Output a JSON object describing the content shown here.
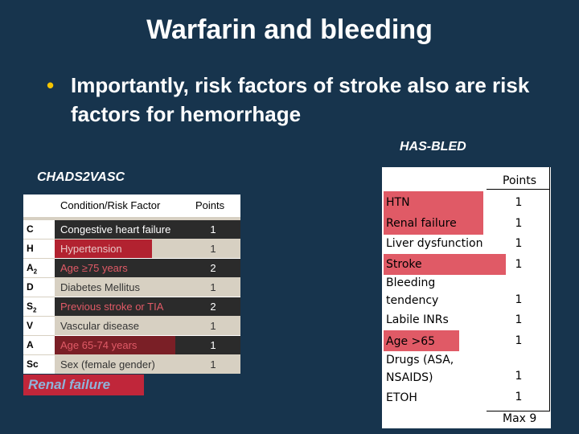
{
  "slide": {
    "title": "Warfarin and bleeding",
    "bullet_marker": "•",
    "bullet_text": "Importantly, risk factors of stroke also are risk factors for hemorrhage"
  },
  "has_bled_label": "HAS-BLED",
  "chads_label": "CHADS2VASC",
  "chads_table": {
    "header_condition": "Condition/Risk Factor",
    "header_points": "Points",
    "rows": [
      {
        "abbr": "C",
        "condition": "Congestive heart failure",
        "points": "1"
      },
      {
        "abbr": "H",
        "condition": "Hypertension",
        "points": "1"
      },
      {
        "abbr": "A2",
        "condition": "Age ≥75 years",
        "points": "2"
      },
      {
        "abbr": "D",
        "condition": "Diabetes Mellitus",
        "points": "1"
      },
      {
        "abbr": "S2",
        "condition": "Previous stroke or TIA",
        "points": "2"
      },
      {
        "abbr": "V",
        "condition": "Vascular disease",
        "points": "1"
      },
      {
        "abbr": "A",
        "condition": "Age 65-74 years",
        "points": "1"
      },
      {
        "abbr": "Sc",
        "condition": "Sex (female gender)",
        "points": "1"
      }
    ]
  },
  "renal_failure_note": "Renal failure",
  "has_bled_table": {
    "header_points": "Points",
    "rows": [
      {
        "condition": "HTN",
        "points": "1"
      },
      {
        "condition": "Renal failure",
        "points": "1"
      },
      {
        "condition": "Liver dysfunction",
        "points": "1"
      },
      {
        "condition": "Stroke",
        "points": "1"
      },
      {
        "condition": "Bleeding tendency",
        "points": "1"
      },
      {
        "condition": "Labile INRs",
        "points": "1"
      },
      {
        "condition": "Age >65",
        "points": "1"
      },
      {
        "condition": "Drugs (ASA, NSAIDS)",
        "points": "1"
      },
      {
        "condition": "ETOH",
        "points": "1"
      }
    ],
    "max_label": "Max 9"
  },
  "colors": {
    "background": "#17344d",
    "bullet": "#f5c400",
    "highlight_red": "#b22230",
    "highlight_pink": "#e05a66"
  }
}
